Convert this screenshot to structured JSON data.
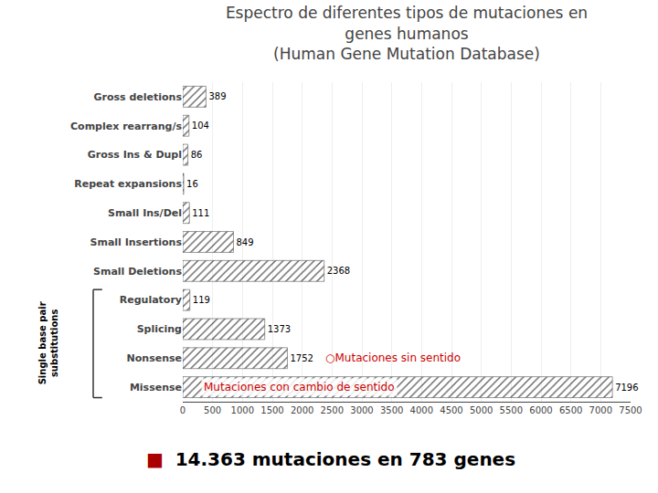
{
  "chart_data": {
    "type": "bar",
    "orientation": "horizontal",
    "title": "Espectro de diferentes tipos de mutaciones en genes humanos",
    "subtitle": "(Human Gene Mutation Database)",
    "categories": [
      "Gross deletions",
      "Complex rearrang/s",
      "Gross Ins & Dupl",
      "Repeat expansions",
      "Small Ins/Del",
      "Small Insertions",
      "Small Deletions",
      "Regulatory",
      "Splicing",
      "Nonsense",
      "Missense"
    ],
    "values": [
      389,
      104,
      86,
      16,
      111,
      849,
      2368,
      119,
      1373,
      1752,
      7196
    ],
    "color": "#aaaaaa",
    "xlim": [
      0,
      7500
    ],
    "xticks": [
      0,
      500,
      1000,
      1500,
      2000,
      2500,
      3000,
      3500,
      4000,
      4500,
      5000,
      5500,
      6000,
      6500,
      7000,
      7500
    ],
    "grid": true,
    "data_labels": true,
    "annotations": [
      {
        "text": "○Mutaciones sin sentido",
        "category": "Nonsense",
        "color": "#cc0000"
      },
      {
        "text": "Mutaciones con cambio de sentido",
        "category": "Missense",
        "color": "#cc0000"
      }
    ],
    "groups": [
      {
        "label": "Single base pair\nsubstitutions",
        "from": "Regulatory",
        "to": "Missense"
      }
    ],
    "footer": {
      "bullet": "■",
      "bullet_color": "#aa0000",
      "text": "14.363 mutaciones en 783 genes"
    }
  }
}
